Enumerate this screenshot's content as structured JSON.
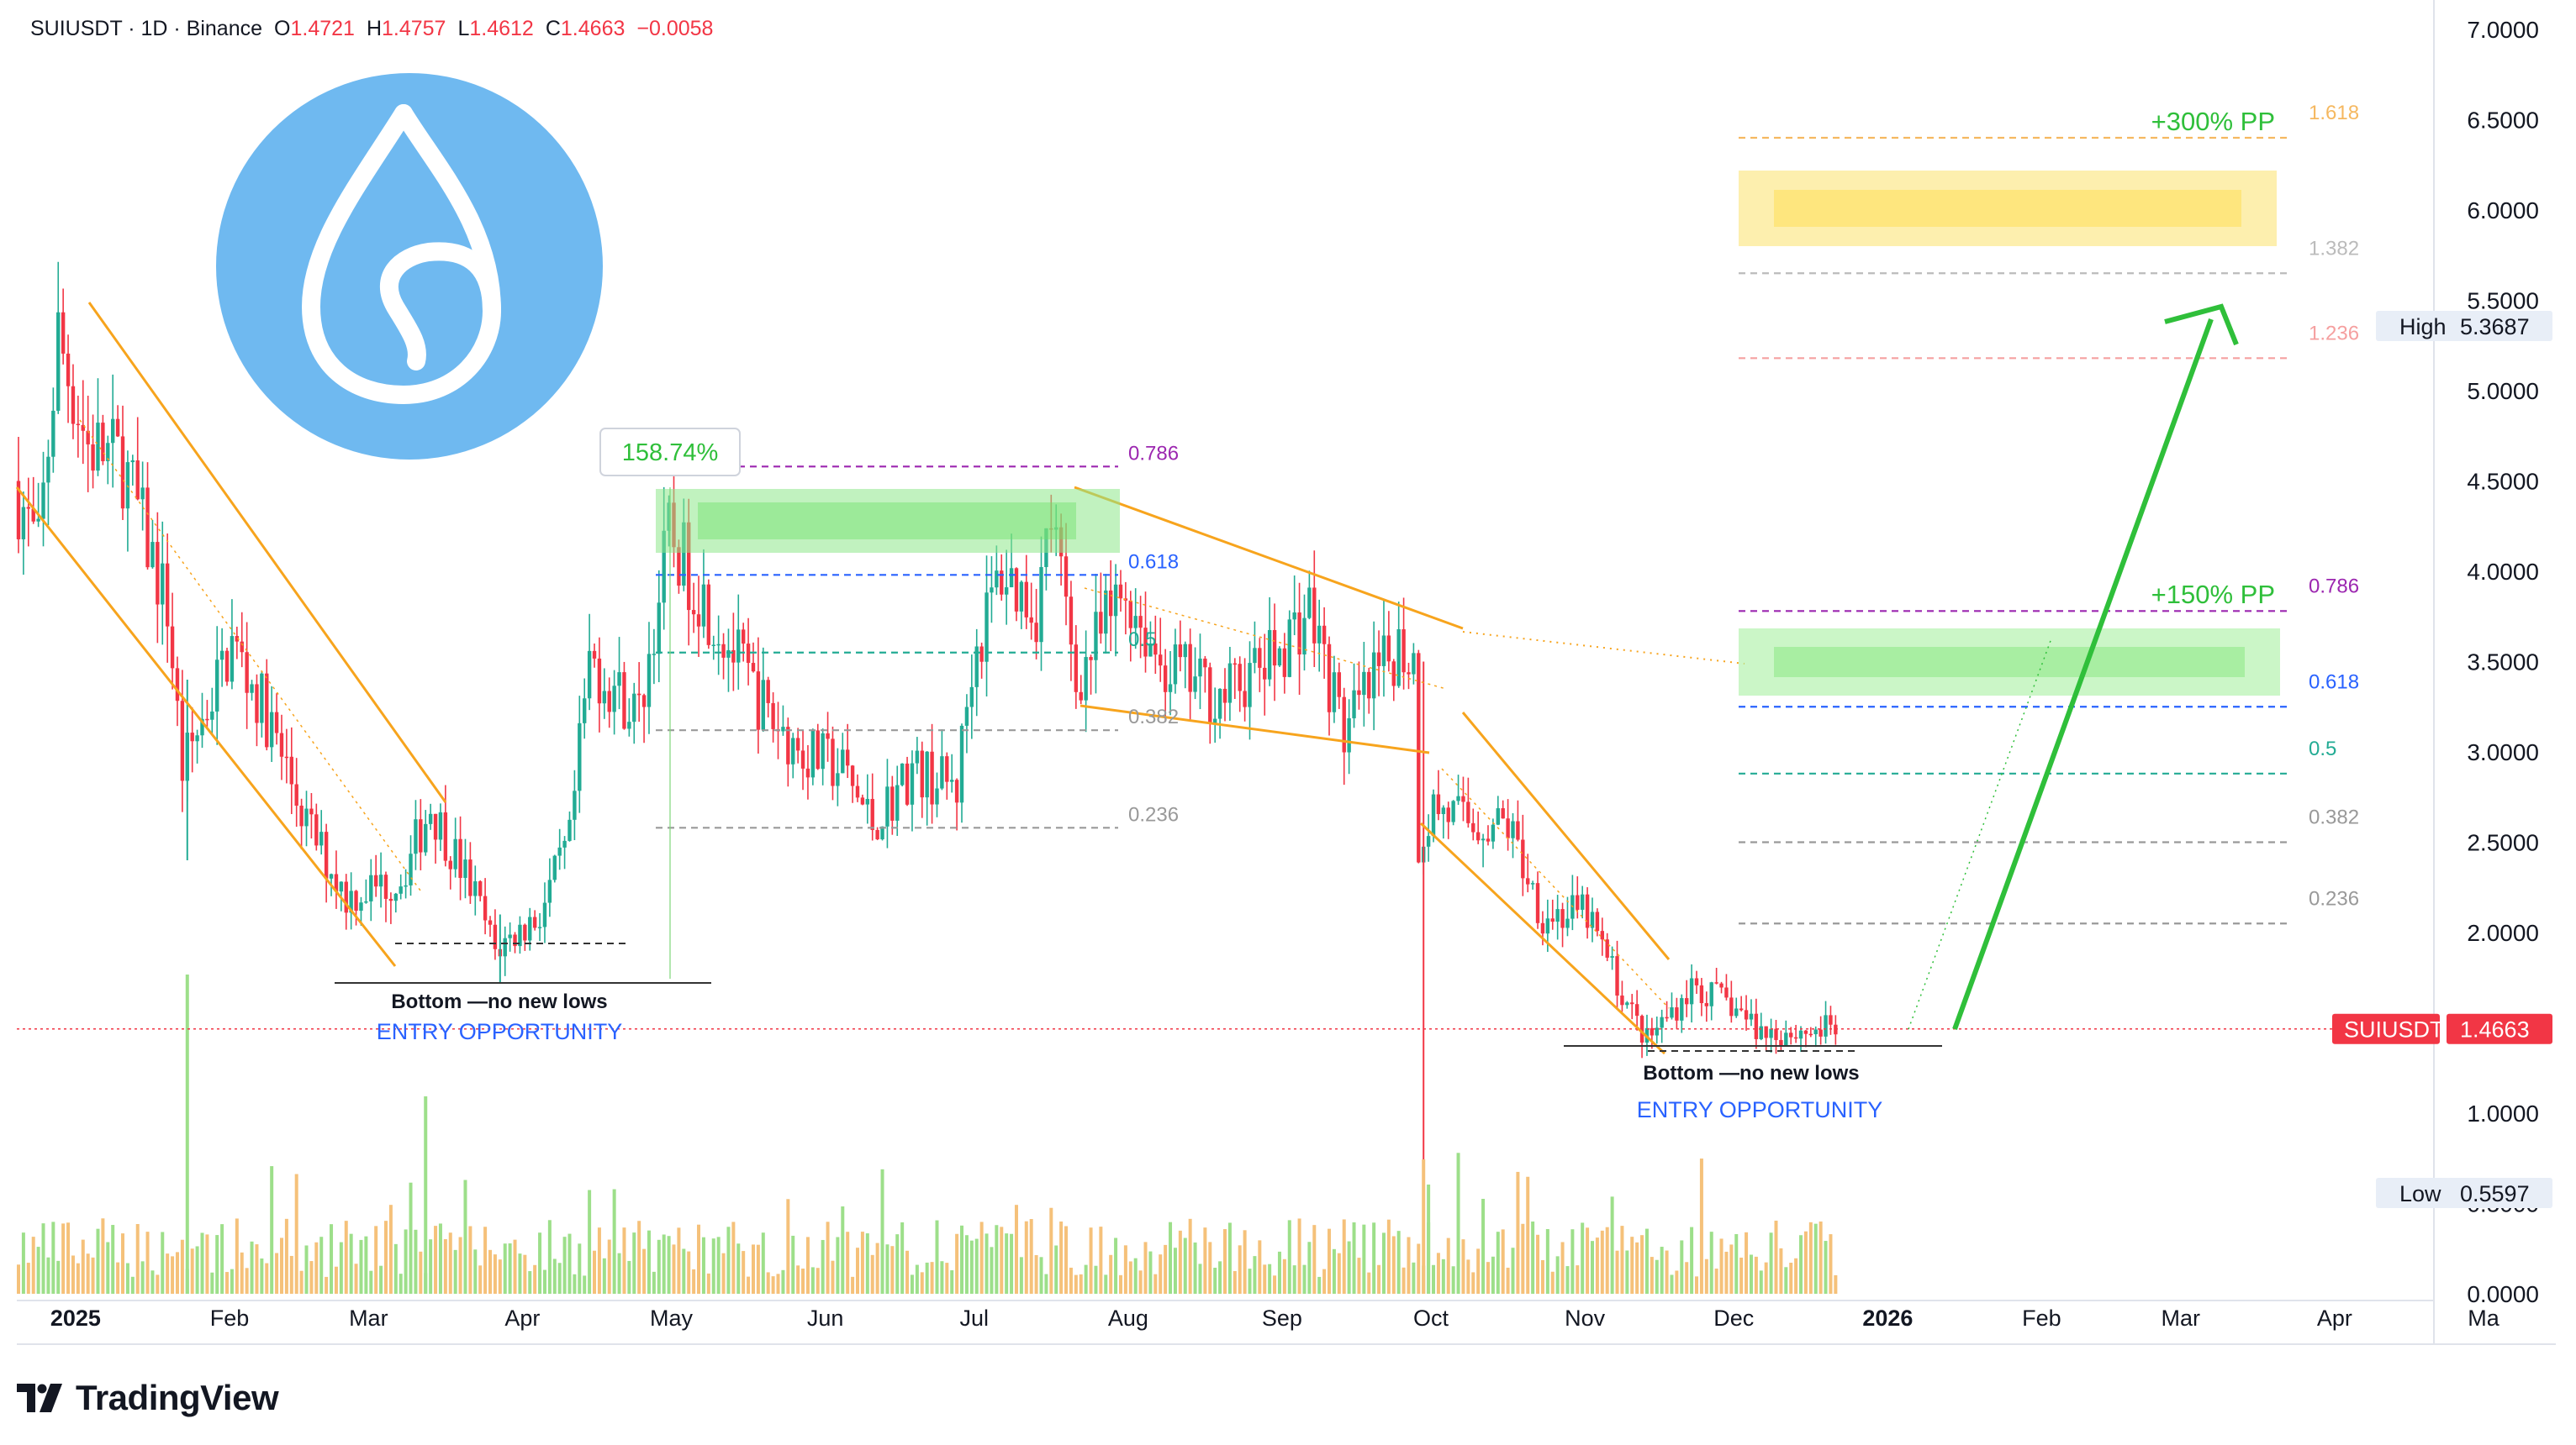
{
  "header": {
    "symbol": "SUIUSDT · 1D · Binance",
    "open_label": "O",
    "open": "1.4721",
    "high_label": "H",
    "high": "1.4757",
    "low_label": "L",
    "low": "1.4612",
    "close_label": "C",
    "close": "1.4663",
    "change": "−0.0058"
  },
  "brand": {
    "name": "TradingView",
    "icon": "tradingview-logo-icon"
  },
  "logo": {
    "icon": "sui-droplet-logo-icon",
    "color": "#6fb9f0"
  },
  "colors": {
    "up": "#22ab94",
    "down": "#f23645",
    "vol_up": "#9ddf8a",
    "vol_down": "#f5c17a",
    "trend": "#f7a41d",
    "accent_green": "#2fbf3a",
    "fib_blue": "#2962ff",
    "fib_purple": "#9c27b0"
  },
  "chart_data": {
    "type": "candlestick",
    "title": "SUIUSDT · 1D · Binance",
    "y_ticks": [
      "7.0000",
      "6.5000",
      "6.0000",
      "5.5000",
      "5.0000",
      "4.5000",
      "4.0000",
      "3.5000",
      "3.0000",
      "2.5000",
      "2.0000",
      "1.5000",
      "1.0000",
      "0.5000",
      "0.0000"
    ],
    "ylim": [
      0,
      7
    ],
    "x_ticks": [
      "2025",
      "Feb",
      "Mar",
      "Apr",
      "May",
      "Jun",
      "Jul",
      "Aug",
      "Sep",
      "Oct",
      "Nov",
      "Dec",
      "2026",
      "Feb",
      "Mar",
      "Apr",
      "Ma"
    ],
    "x_tick_dates": [
      "2025-01-01",
      "2025-02-01",
      "2025-03-01",
      "2025-04-01",
      "2025-05-01",
      "2025-06-01",
      "2025-07-01",
      "2025-08-01",
      "2025-09-01",
      "2025-10-01",
      "2025-11-01",
      "2025-12-01",
      "2026-01-01",
      "2026-02-01",
      "2026-03-01",
      "2026-04-01",
      "2026-05-01"
    ],
    "price_path": [
      [
        "2024-12-31",
        4.5
      ],
      [
        "2025-01-05",
        4.1
      ],
      [
        "2025-01-09",
        5.3
      ],
      [
        "2025-01-15",
        4.7
      ],
      [
        "2025-01-22",
        4.6
      ],
      [
        "2025-01-31",
        3.8
      ],
      [
        "2025-02-03",
        2.9
      ],
      [
        "2025-02-13",
        3.6
      ],
      [
        "2025-02-20",
        3.2
      ],
      [
        "2025-02-28",
        2.6
      ],
      [
        "2025-03-08",
        2.2
      ],
      [
        "2025-03-19",
        2.3
      ],
      [
        "2025-03-25",
        2.7
      ],
      [
        "2025-04-03",
        2.2
      ],
      [
        "2025-04-07",
        1.9
      ],
      [
        "2025-04-16",
        2.1
      ],
      [
        "2025-04-22",
        2.5
      ],
      [
        "2025-04-26",
        3.5
      ],
      [
        "2025-05-06",
        3.2
      ],
      [
        "2025-05-12",
        4.2
      ],
      [
        "2025-05-20",
        3.8
      ],
      [
        "2025-06-01",
        3.2
      ],
      [
        "2025-06-08",
        3.0
      ],
      [
        "2025-06-16",
        2.9
      ],
      [
        "2025-06-22",
        2.6
      ],
      [
        "2025-06-30",
        2.9
      ],
      [
        "2025-07-09",
        2.8
      ],
      [
        "2025-07-12",
        3.5
      ],
      [
        "2025-07-18",
        4.0
      ],
      [
        "2025-07-25",
        3.8
      ],
      [
        "2025-07-28",
        4.3
      ],
      [
        "2025-08-02",
        3.4
      ],
      [
        "2025-08-12",
        3.9
      ],
      [
        "2025-08-19",
        3.5
      ],
      [
        "2025-08-31",
        3.3
      ],
      [
        "2025-09-10",
        3.5
      ],
      [
        "2025-09-18",
        3.8
      ],
      [
        "2025-09-25",
        3.1
      ],
      [
        "2025-10-06",
        3.6
      ],
      [
        "2025-10-09",
        3.5
      ],
      [
        "2025-10-10",
        2.5
      ],
      [
        "2025-10-13",
        2.7
      ],
      [
        "2025-10-21",
        2.6
      ],
      [
        "2025-10-28",
        2.6
      ],
      [
        "2025-11-04",
        2.1
      ],
      [
        "2025-11-13",
        2.1
      ],
      [
        "2025-11-21",
        1.6
      ],
      [
        "2025-11-25",
        1.4
      ],
      [
        "2025-12-04",
        1.7
      ],
      [
        "2025-12-12",
        1.6
      ],
      [
        "2025-12-18",
        1.45
      ],
      [
        "2025-12-27",
        1.45
      ],
      [
        "2026-01-01",
        1.47
      ]
    ],
    "high": {
      "label": "High",
      "value": "5.3687"
    },
    "low": {
      "label": "Low",
      "value": "0.5597"
    },
    "last_price": {
      "label": "SUIUSDT",
      "value": "1.4663"
    },
    "volume_series": "bars under the price pane, green on up days, orange on down days",
    "fib_levels_left": [
      {
        "label": "0.786",
        "price": 4.58,
        "color": "#9c27b0"
      },
      {
        "label": "0.618",
        "price": 3.98,
        "color": "#2962ff"
      },
      {
        "label": "0.5",
        "price": 3.55,
        "color": "#22ab94"
      },
      {
        "label": "0.382",
        "price": 3.12,
        "color": "#999999"
      },
      {
        "label": "0.236",
        "price": 2.58,
        "color": "#999999"
      }
    ],
    "fib_levels_right": [
      {
        "label": "1.618",
        "price": 6.4,
        "color": "#f5b860"
      },
      {
        "label": "1.382",
        "price": 5.65,
        "color": "#bbbbbb"
      },
      {
        "label": "1.236",
        "price": 5.18,
        "color": "#f5a0a0"
      },
      {
        "label": "0.786",
        "price": 3.78,
        "color": "#9c27b0"
      },
      {
        "label": "0.618",
        "price": 3.25,
        "color": "#2962ff"
      },
      {
        "label": "0.5",
        "price": 2.88,
        "color": "#22ab94"
      },
      {
        "label": "0.382",
        "price": 2.5,
        "color": "#999999"
      },
      {
        "label": "0.236",
        "price": 2.05,
        "color": "#999999"
      }
    ],
    "annotations": {
      "measure": "158.74%",
      "bottom1_line1": "Bottom —no new lows",
      "bottom1_line2": "ENTRY OPPORTUNITY",
      "bottom2_line1": "Bottom —no new lows",
      "bottom2_line2": "ENTRY OPPORTUNITY",
      "target1": "+150% PP",
      "target2": "+300% PP"
    }
  }
}
